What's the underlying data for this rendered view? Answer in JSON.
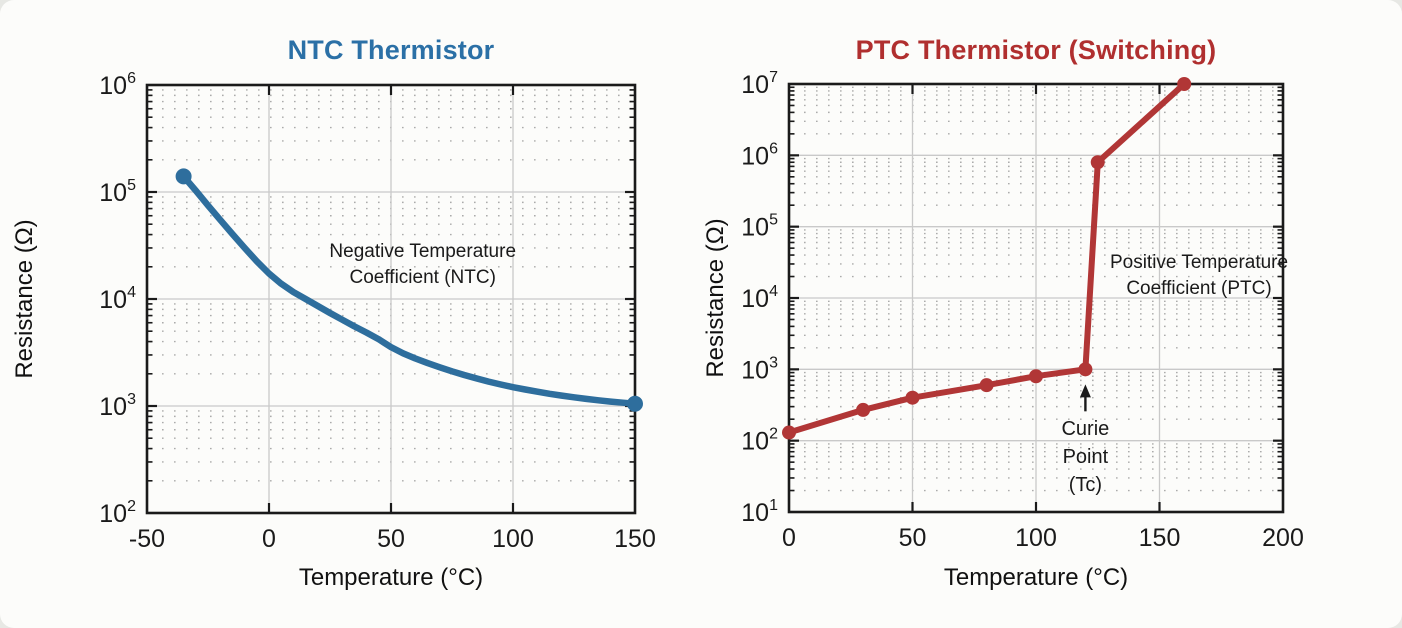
{
  "page": {
    "background": "#e7e8e4",
    "card_background": "#fcfcfa"
  },
  "colors": {
    "axis": "#1a1a1a",
    "major_grid": "#c9c9c9",
    "minor_grid": "#ababab",
    "ntc_accent": "#2b70a6",
    "ptc_accent": "#b02f2f"
  },
  "chart_data": [
    {
      "type": "line",
      "id": "ntc",
      "title": "NTC Thermistor",
      "title_color": "#2b70a6",
      "line_color": "#2e6e9d",
      "xlabel": "Temperature (°C)",
      "ylabel": "Resistance (Ω)",
      "x_range": [
        -50,
        150
      ],
      "x_ticks": [
        -50,
        0,
        50,
        100,
        150
      ],
      "y_scale": "log",
      "y_exp_range": [
        2,
        6
      ],
      "y_tick_exponents": [
        2,
        3,
        4,
        5,
        6
      ],
      "grid": {
        "major": true,
        "minor_dotted": true
      },
      "markers": "ends",
      "series": [
        [
          -35,
          140000
        ],
        [
          -30,
          103000
        ],
        [
          -25,
          75000
        ],
        [
          -20,
          55000
        ],
        [
          -15,
          40500
        ],
        [
          -10,
          30000
        ],
        [
          -5,
          22500
        ],
        [
          0,
          17300
        ],
        [
          5,
          13900
        ],
        [
          10,
          11600
        ],
        [
          15,
          10000
        ],
        [
          20,
          8600
        ],
        [
          25,
          7400
        ],
        [
          30,
          6400
        ],
        [
          35,
          5550
        ],
        [
          40,
          4850
        ],
        [
          45,
          4200
        ],
        [
          50,
          3550
        ],
        [
          55,
          3100
        ],
        [
          60,
          2780
        ],
        [
          65,
          2520
        ],
        [
          70,
          2300
        ],
        [
          75,
          2110
        ],
        [
          80,
          1950
        ],
        [
          85,
          1810
        ],
        [
          90,
          1690
        ],
        [
          95,
          1590
        ],
        [
          100,
          1500
        ],
        [
          105,
          1425
        ],
        [
          110,
          1360
        ],
        [
          115,
          1300
        ],
        [
          120,
          1250
        ],
        [
          125,
          1205
        ],
        [
          130,
          1165
        ],
        [
          135,
          1130
        ],
        [
          140,
          1100
        ],
        [
          145,
          1073
        ],
        [
          150,
          1050
        ]
      ],
      "annotation": {
        "lines": [
          "Negative Temperature",
          "Coefficient (NTC)"
        ],
        "t": 63,
        "r_exp": 4.32
      }
    },
    {
      "type": "line",
      "id": "ptc",
      "title": "PTC Thermistor (Switching)",
      "title_color": "#b02f2f",
      "line_color": "#b13636",
      "xlabel": "Temperature (°C)",
      "ylabel": "Resistance (Ω)",
      "x_range": [
        0,
        200
      ],
      "x_ticks": [
        0,
        50,
        100,
        150,
        200
      ],
      "y_scale": "log",
      "y_exp_range": [
        1,
        7
      ],
      "y_tick_exponents": [
        1,
        2,
        3,
        4,
        5,
        6,
        7
      ],
      "grid": {
        "major": true,
        "minor_dotted": true
      },
      "markers": "all",
      "series": [
        [
          0,
          130
        ],
        [
          30,
          270
        ],
        [
          50,
          400
        ],
        [
          80,
          600
        ],
        [
          100,
          800
        ],
        [
          120,
          1000
        ],
        [
          125,
          800000
        ],
        [
          160,
          10000000
        ]
      ],
      "annotation": {
        "lines": [
          "Positive Temperature",
          "Coefficient (PTC)"
        ],
        "t": 166,
        "r_exp": 4.31
      },
      "curie": {
        "lines": [
          "Curie",
          "Point",
          "(Tc)"
        ],
        "t": 120,
        "r": 1000
      }
    }
  ]
}
